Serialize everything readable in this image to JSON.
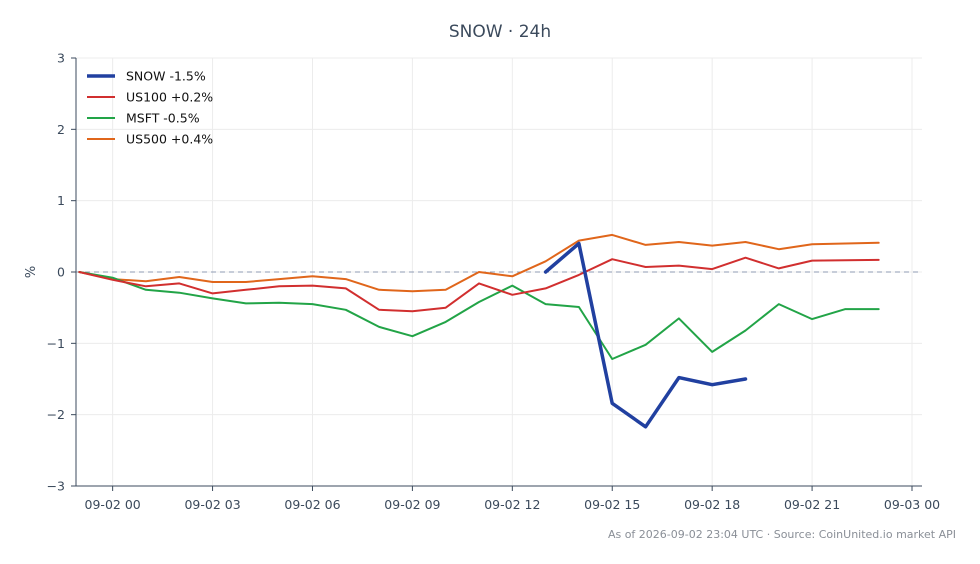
{
  "chart_data": {
    "type": "line",
    "title": "SNOW · 24h",
    "xlabel": "",
    "ylabel": "%",
    "xlim": [
      "09-01 22:54",
      "09-03 00:18"
    ],
    "ylim": [
      -3,
      3
    ],
    "yticks": [
      -3,
      -2,
      -1,
      0,
      1,
      2,
      3
    ],
    "ytick_labels": [
      "−3",
      "−2",
      "−1",
      "0",
      "1",
      "2",
      "3"
    ],
    "xticks": [
      "09-02 00:00",
      "09-02 03:00",
      "09-02 06:00",
      "09-02 09:00",
      "09-02 12:00",
      "09-02 15:00",
      "09-02 18:00",
      "09-02 21:00",
      "09-03 00:00"
    ],
    "xtick_labels": [
      "09-02 00",
      "09-02 03",
      "09-02 06",
      "09-02 09",
      "09-02 12",
      "09-02 15",
      "09-02 18",
      "09-02 21",
      "09-03 00"
    ],
    "grid": true,
    "zero_line": true,
    "legend_position": "top-left",
    "series": [
      {
        "name": "SNOW -1.5%",
        "color": "#2140a0",
        "width": 3.5,
        "x": [
          "09-02 13:00",
          "09-02 14:00",
          "09-02 15:00",
          "09-02 16:00",
          "09-02 17:00",
          "09-02 18:00",
          "09-02 19:00"
        ],
        "y": [
          0.0,
          0.4,
          -1.84,
          -2.17,
          -1.48,
          -1.58,
          -1.5
        ]
      },
      {
        "name": "US100 +0.2%",
        "color": "#d12f2f",
        "width": 2,
        "x": [
          "09-01 23:00",
          "09-02 00:00",
          "09-02 01:00",
          "09-02 02:00",
          "09-02 03:00",
          "09-02 04:00",
          "09-02 05:00",
          "09-02 06:00",
          "09-02 07:00",
          "09-02 08:00",
          "09-02 09:00",
          "09-02 10:00",
          "09-02 11:00",
          "09-02 12:00",
          "09-02 13:00",
          "09-02 14:00",
          "09-02 15:00",
          "09-02 16:00",
          "09-02 17:00",
          "09-02 18:00",
          "09-02 19:00",
          "09-02 20:00",
          "09-02 21:00",
          "09-02 23:00"
        ],
        "y": [
          0.0,
          -0.11,
          -0.2,
          -0.16,
          -0.3,
          -0.25,
          -0.2,
          -0.19,
          -0.23,
          -0.53,
          -0.55,
          -0.5,
          -0.16,
          -0.32,
          -0.23,
          -0.04,
          0.18,
          0.07,
          0.09,
          0.04,
          0.2,
          0.05,
          0.16,
          0.17
        ]
      },
      {
        "name": "MSFT -0.5%",
        "color": "#22a447",
        "width": 2,
        "x": [
          "09-01 23:00",
          "09-02 00:00",
          "09-02 01:00",
          "09-02 02:00",
          "09-02 03:00",
          "09-02 04:00",
          "09-02 05:00",
          "09-02 06:00",
          "09-02 07:00",
          "09-02 08:00",
          "09-02 09:00",
          "09-02 10:00",
          "09-02 11:00",
          "09-02 12:00",
          "09-02 13:00",
          "09-02 14:00",
          "09-02 15:00",
          "09-02 16:00",
          "09-02 17:00",
          "09-02 18:00",
          "09-02 19:00",
          "09-02 20:00",
          "09-02 21:00",
          "09-02 22:00",
          "09-02 23:00"
        ],
        "y": [
          0.0,
          -0.08,
          -0.25,
          -0.29,
          -0.37,
          -0.44,
          -0.43,
          -0.45,
          -0.53,
          -0.77,
          -0.9,
          -0.7,
          -0.42,
          -0.19,
          -0.45,
          -0.49,
          -1.22,
          -1.02,
          -0.65,
          -1.12,
          -0.82,
          -0.45,
          -0.66,
          -0.52,
          -0.52
        ]
      },
      {
        "name": "US500 +0.4%",
        "color": "#e0661b",
        "width": 2,
        "x": [
          "09-01 23:00",
          "09-02 00:00",
          "09-02 01:00",
          "09-02 02:00",
          "09-02 03:00",
          "09-02 04:00",
          "09-02 05:00",
          "09-02 06:00",
          "09-02 07:00",
          "09-02 08:00",
          "09-02 09:00",
          "09-02 10:00",
          "09-02 11:00",
          "09-02 12:00",
          "09-02 13:00",
          "09-02 14:00",
          "09-02 15:00",
          "09-02 16:00",
          "09-02 17:00",
          "09-02 18:00",
          "09-02 19:00",
          "09-02 20:00",
          "09-02 21:00",
          "09-02 23:00"
        ],
        "y": [
          0.0,
          -0.1,
          -0.13,
          -0.07,
          -0.14,
          -0.14,
          -0.1,
          -0.06,
          -0.1,
          -0.25,
          -0.27,
          -0.25,
          0.0,
          -0.06,
          0.15,
          0.44,
          0.52,
          0.38,
          0.42,
          0.37,
          0.42,
          0.32,
          0.39,
          0.41
        ]
      }
    ]
  },
  "footer": {
    "text": "As of 2026-09-02 23:04 UTC · Source: CoinUnited.io market API"
  }
}
